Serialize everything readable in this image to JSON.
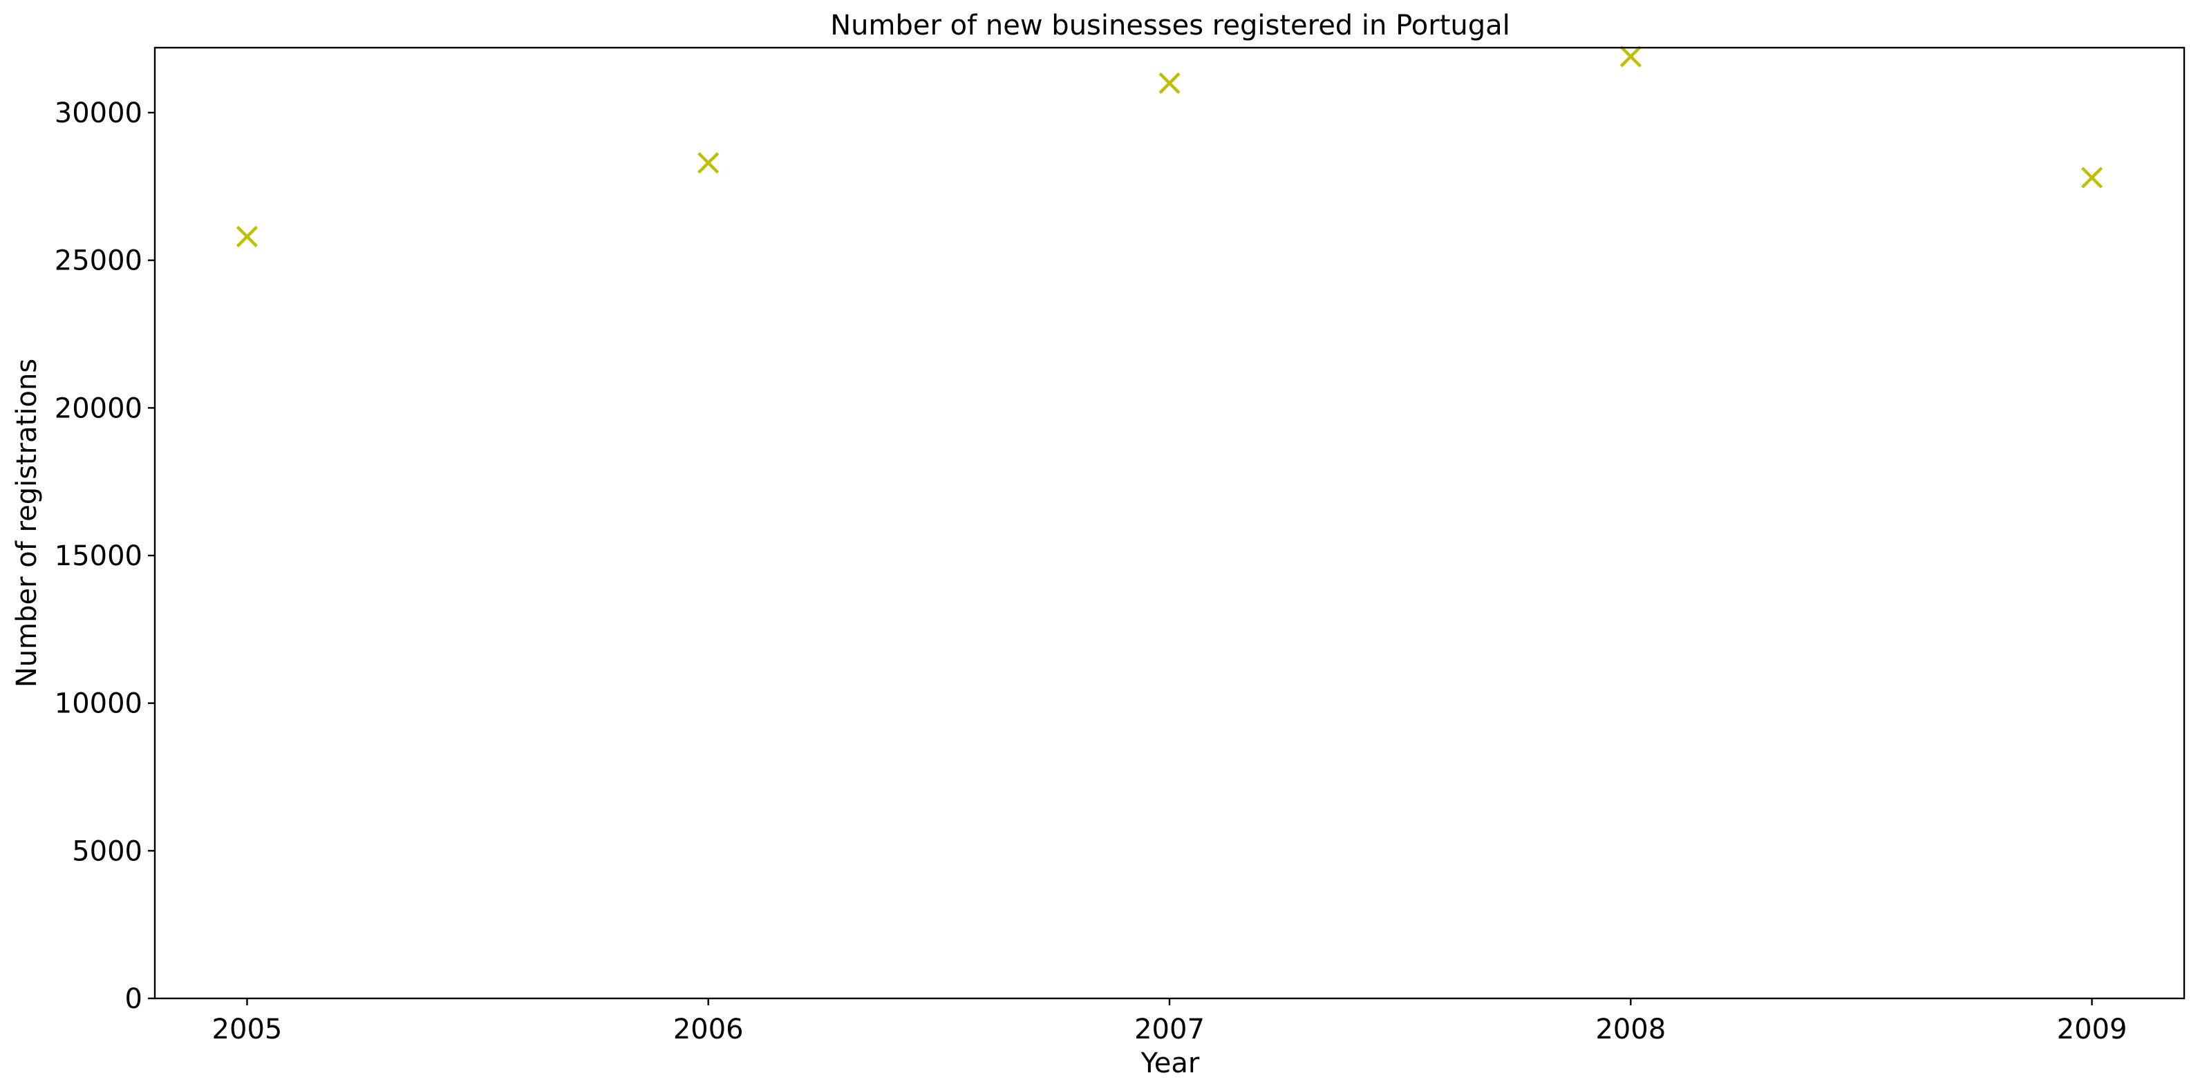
{
  "chart_data": {
    "type": "scatter",
    "title": "Number of new businesses registered in Portugal",
    "xlabel": "Year",
    "ylabel": "Number of registrations",
    "x": [
      2005,
      2006,
      2007,
      2008,
      2009
    ],
    "y": [
      25800,
      28300,
      31000,
      31900,
      27800
    ],
    "xlim": [
      2004.8,
      2009.2
    ],
    "ylim": [
      0,
      32200
    ],
    "xticks": [
      "2005",
      "2006",
      "2007",
      "2008",
      "2009"
    ],
    "yticks": [
      "0",
      "5000",
      "10000",
      "15000",
      "20000",
      "25000",
      "30000"
    ],
    "marker": "x",
    "marker_color": "#bfbf00",
    "grid": false
  }
}
